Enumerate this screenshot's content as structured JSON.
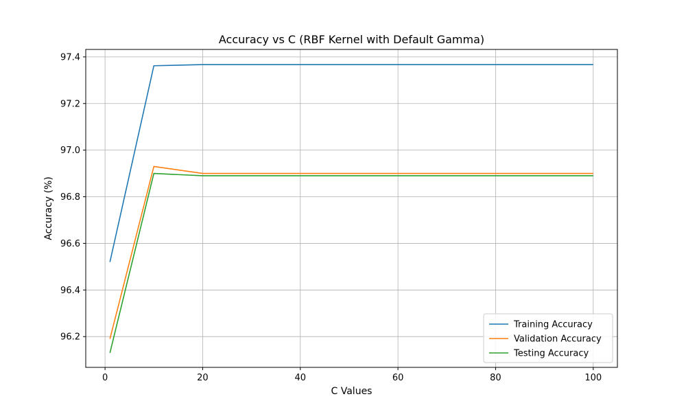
{
  "chart_data": {
    "type": "line",
    "title": "Accuracy vs C (RBF Kernel with Default Gamma)",
    "xlabel": "C Values",
    "ylabel": "Accuracy (%)",
    "x": [
      1,
      10,
      20,
      30,
      40,
      50,
      60,
      70,
      80,
      90,
      100
    ],
    "xlim": [
      -3.95,
      104.95
    ],
    "ylim": [
      96.068,
      97.432
    ],
    "xticks": [
      0,
      20,
      40,
      60,
      80,
      100
    ],
    "xtick_labels": [
      "0",
      "20",
      "40",
      "60",
      "80",
      "100"
    ],
    "yticks": [
      96.2,
      96.4,
      96.6,
      96.8,
      97.0,
      97.2,
      97.4
    ],
    "ytick_labels": [
      "96.2",
      "96.4",
      "96.6",
      "96.8",
      "97.0",
      "97.2",
      "97.4"
    ],
    "grid": true,
    "legend_position": "bottom-right",
    "series": [
      {
        "name": "Training Accuracy",
        "color": "#1f77b4",
        "values": [
          96.52,
          97.362,
          97.367,
          97.367,
          97.367,
          97.367,
          97.367,
          97.367,
          97.367,
          97.367,
          97.367
        ]
      },
      {
        "name": "Validation Accuracy",
        "color": "#ff7f0e",
        "values": [
          96.19,
          96.93,
          96.9,
          96.9,
          96.9,
          96.9,
          96.9,
          96.9,
          96.9,
          96.9,
          96.9
        ]
      },
      {
        "name": "Testing Accuracy",
        "color": "#2ca02c",
        "values": [
          96.13,
          96.9,
          96.89,
          96.89,
          96.89,
          96.89,
          96.89,
          96.89,
          96.89,
          96.89,
          96.89
        ]
      }
    ]
  }
}
